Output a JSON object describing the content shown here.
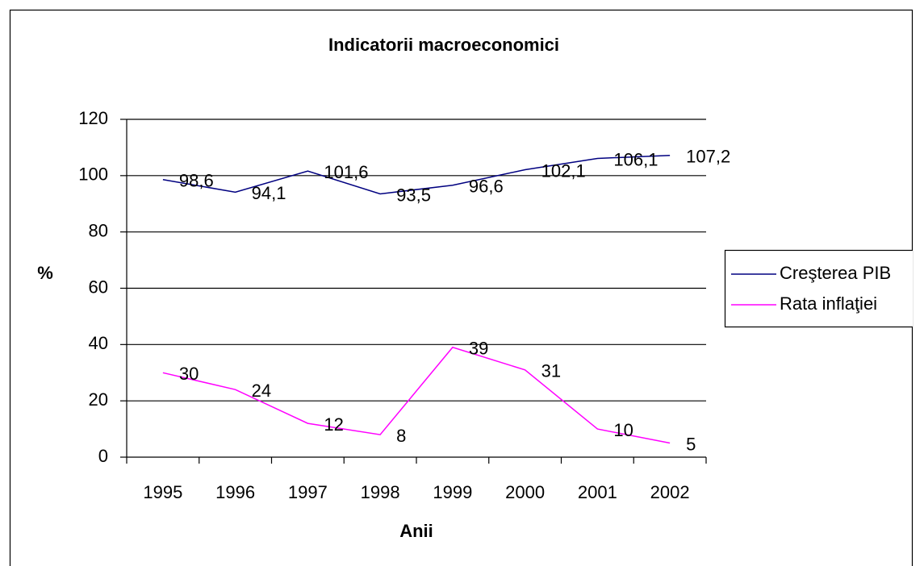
{
  "chart_data": {
    "type": "line",
    "title": "Indicatorii macroeconomici",
    "x_label": "Anii",
    "y_label": "%",
    "categories": [
      "1995",
      "1996",
      "1997",
      "1998",
      "1999",
      "2000",
      "2001",
      "2002"
    ],
    "series": [
      {
        "name": "Creşterea PIB",
        "color": "#000080",
        "values": [
          98.6,
          94.1,
          101.6,
          93.5,
          96.6,
          102.1,
          106.1,
          107.2
        ],
        "value_labels": [
          "98,6",
          "94,1",
          "101,6",
          "93,5",
          "96,6",
          "102,1",
          "106,1",
          "107,2"
        ]
      },
      {
        "name": "Rata inflaţiei",
        "color": "#ff00ff",
        "values": [
          30,
          24,
          12,
          8,
          39,
          31,
          10,
          5
        ]
      }
    ],
    "ylim": [
      0,
      120
    ],
    "yticks": [
      0,
      20,
      40,
      60,
      80,
      100,
      120
    ],
    "grid": true,
    "legend": "right"
  }
}
